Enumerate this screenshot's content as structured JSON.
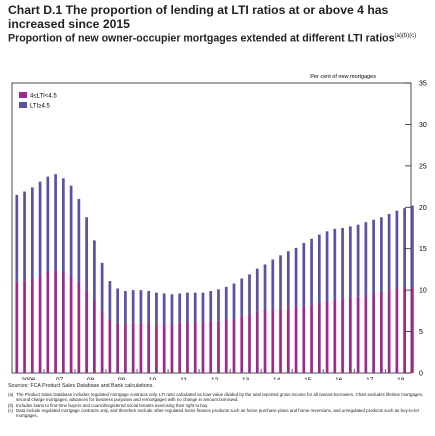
{
  "chart_data": {
    "type": "bar",
    "title": "Chart D.1 The proportion of lending at LTI ratios at or above 4 has increased since 2015",
    "subtitle": "Proportion of new owner-occupier mortgages extended at different LTI ratios",
    "subtitle_notes": "(a)(b)(c)",
    "y_unit_label": "Per cent of new mortgages",
    "ylim": [
      0,
      35
    ],
    "y_ticks": [
      0,
      5,
      10,
      15,
      20,
      25,
      30,
      35
    ],
    "x_tick_labels": [
      "2006",
      "07",
      "08",
      "09",
      "10",
      "11",
      "12",
      "13",
      "14",
      "15",
      "16",
      "17",
      "18"
    ],
    "x_range": [
      2005.97,
      2018.83
    ],
    "stacked": true,
    "grid": false,
    "legend_position": "top-left",
    "series": [
      {
        "name": "4≤LTI<4.5",
        "color": "#9b2a8c",
        "points": [
          [
            2006.0,
            11.0
          ],
          [
            2006.25,
            11.2
          ],
          [
            2006.5,
            11.4
          ],
          [
            2006.75,
            11.8
          ],
          [
            2007.0,
            12.2
          ],
          [
            2007.25,
            12.4
          ],
          [
            2007.5,
            12.2
          ],
          [
            2007.75,
            11.8
          ],
          [
            2008.0,
            11.0
          ],
          [
            2008.25,
            10.0
          ],
          [
            2008.5,
            8.8
          ],
          [
            2008.75,
            7.5
          ],
          [
            2009.0,
            6.5
          ],
          [
            2009.25,
            6.0
          ],
          [
            2009.5,
            5.9
          ],
          [
            2009.75,
            6.0
          ],
          [
            2010.0,
            6.0
          ],
          [
            2010.25,
            6.0
          ],
          [
            2010.5,
            5.9
          ],
          [
            2010.75,
            5.9
          ],
          [
            2011.0,
            5.9
          ],
          [
            2011.25,
            6.0
          ],
          [
            2011.5,
            6.1
          ],
          [
            2011.75,
            6.1
          ],
          [
            2012.0,
            6.1
          ],
          [
            2012.25,
            6.2
          ],
          [
            2012.5,
            6.3
          ],
          [
            2012.75,
            6.4
          ],
          [
            2013.0,
            6.6
          ],
          [
            2013.25,
            6.9
          ],
          [
            2013.5,
            7.1
          ],
          [
            2013.75,
            7.4
          ],
          [
            2014.0,
            7.6
          ],
          [
            2014.25,
            7.7
          ],
          [
            2014.5,
            7.8
          ],
          [
            2014.75,
            7.8
          ],
          [
            2015.0,
            7.9
          ],
          [
            2015.25,
            8.1
          ],
          [
            2015.5,
            8.3
          ],
          [
            2015.75,
            8.5
          ],
          [
            2016.0,
            8.7
          ],
          [
            2016.25,
            8.9
          ],
          [
            2016.5,
            9.0
          ],
          [
            2016.75,
            9.1
          ],
          [
            2017.0,
            9.2
          ],
          [
            2017.25,
            9.4
          ],
          [
            2017.5,
            9.6
          ],
          [
            2017.75,
            9.8
          ],
          [
            2018.0,
            10.0
          ],
          [
            2018.25,
            10.2
          ],
          [
            2018.5,
            10.3
          ],
          [
            2018.75,
            10.4
          ]
        ]
      },
      {
        "name": "LTI≥4.5",
        "color": "#5a52a3",
        "points": [
          [
            2006.0,
            10.5
          ],
          [
            2006.25,
            10.7
          ],
          [
            2006.5,
            11.0
          ],
          [
            2006.75,
            11.3
          ],
          [
            2007.0,
            11.5
          ],
          [
            2007.25,
            11.6
          ],
          [
            2007.5,
            11.3
          ],
          [
            2007.75,
            10.8
          ],
          [
            2008.0,
            10.0
          ],
          [
            2008.25,
            8.8
          ],
          [
            2008.5,
            7.2
          ],
          [
            2008.75,
            5.8
          ],
          [
            2009.0,
            4.6
          ],
          [
            2009.25,
            4.2
          ],
          [
            2009.5,
            4.0
          ],
          [
            2009.75,
            4.0
          ],
          [
            2010.0,
            4.0
          ],
          [
            2010.25,
            3.9
          ],
          [
            2010.5,
            3.8
          ],
          [
            2010.75,
            3.7
          ],
          [
            2011.0,
            3.6
          ],
          [
            2011.25,
            3.6
          ],
          [
            2011.5,
            3.6
          ],
          [
            2011.75,
            3.6
          ],
          [
            2012.0,
            3.6
          ],
          [
            2012.25,
            3.7
          ],
          [
            2012.5,
            3.8
          ],
          [
            2012.75,
            4.0
          ],
          [
            2013.0,
            4.2
          ],
          [
            2013.25,
            4.5
          ],
          [
            2013.5,
            4.8
          ],
          [
            2013.75,
            5.2
          ],
          [
            2014.0,
            5.5
          ],
          [
            2014.25,
            6.0
          ],
          [
            2014.5,
            6.4
          ],
          [
            2014.75,
            6.9
          ],
          [
            2015.0,
            7.2
          ],
          [
            2015.25,
            7.6
          ],
          [
            2015.5,
            7.9
          ],
          [
            2015.75,
            8.2
          ],
          [
            2016.0,
            8.4
          ],
          [
            2016.25,
            8.5
          ],
          [
            2016.5,
            8.5
          ],
          [
            2016.75,
            8.6
          ],
          [
            2017.0,
            8.7
          ],
          [
            2017.25,
            8.8
          ],
          [
            2017.5,
            8.9
          ],
          [
            2017.75,
            9.0
          ],
          [
            2018.0,
            9.2
          ],
          [
            2018.25,
            9.4
          ],
          [
            2018.5,
            9.6
          ],
          [
            2018.75,
            9.8
          ]
        ]
      }
    ]
  },
  "sources": "Sources: FCA Product Sales Database and Bank calculations.",
  "footnotes": [
    {
      "mark": "(a)",
      "text": "The Product Sales Database includes regulated mortgage contracts only. LTI ratio calculated as loan value divided by the total reported gross income for all named borrowers. Chart excludes lifetime mortgages, second charge mortgages, advances for business purposes and remortgages with no change in amount borrowed."
    },
    {
      "mark": "(b)",
      "text": "Includes loans to first-time buyers and council/registered social tenants exercising their right to buy."
    },
    {
      "mark": "(c)",
      "text": "Data include regulated mortgage contracts only, and therefore exclude other regulated home finance products such as home purchase plans and home reversions, and unregulated products such as buy-to-let mortgages."
    }
  ]
}
